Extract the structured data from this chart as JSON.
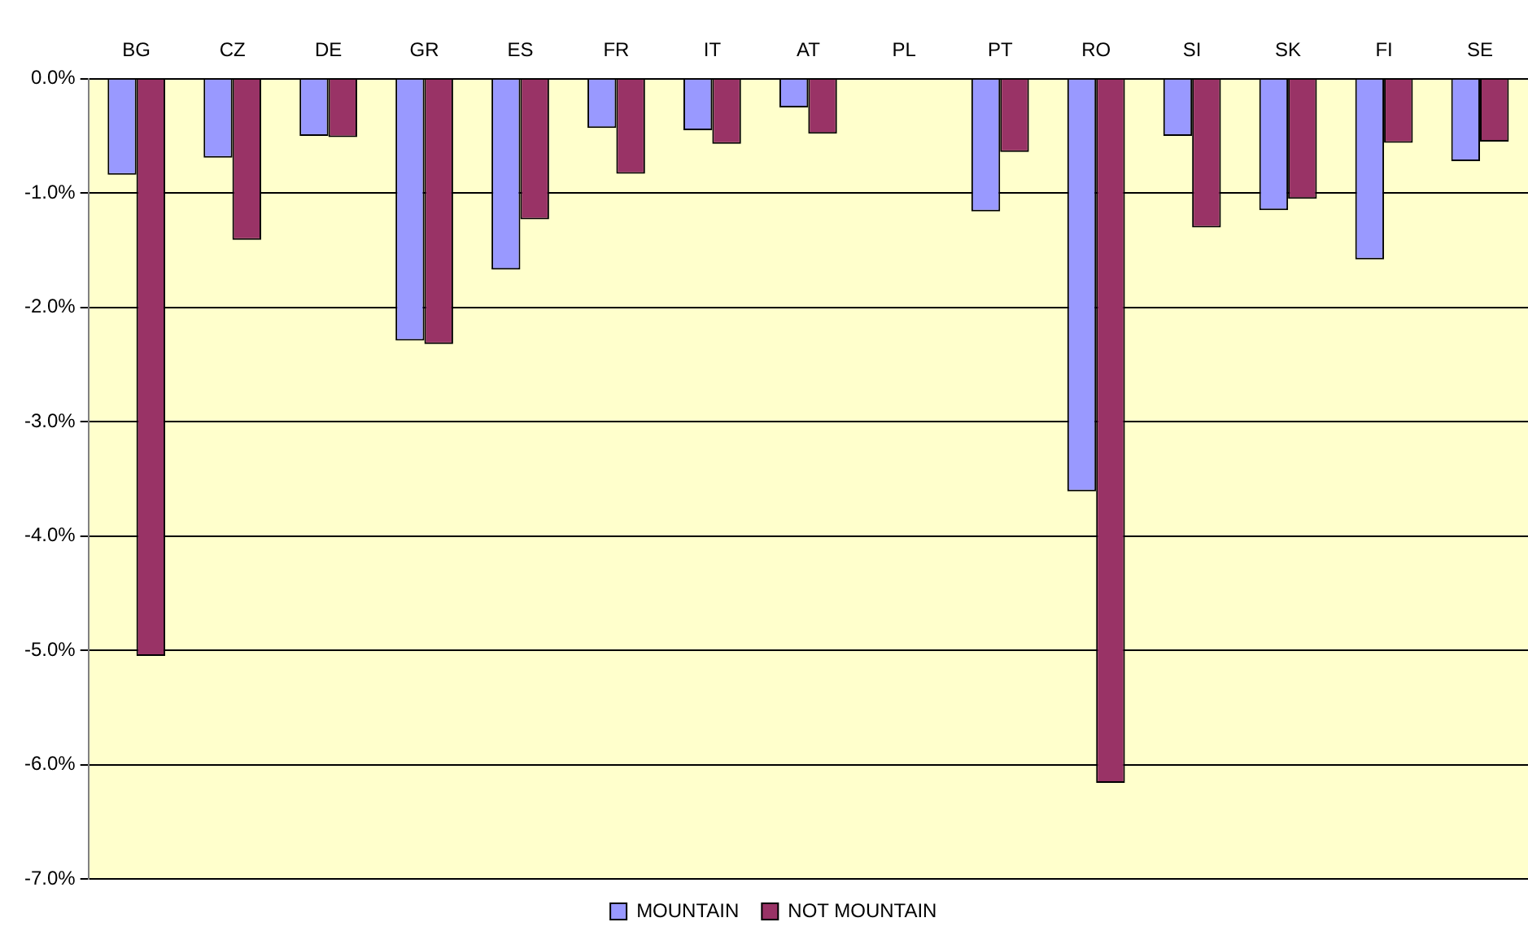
{
  "chart_data": {
    "type": "bar",
    "categories": [
      "BG",
      "CZ",
      "DE",
      "GR",
      "ES",
      "FR",
      "IT",
      "AT",
      "PL",
      "PT",
      "RO",
      "SI",
      "SK",
      "FI",
      "SE"
    ],
    "series": [
      {
        "name": "MOUNTAIN",
        "color": "#9999ff",
        "values": [
          -0.84,
          -0.69,
          -0.5,
          -2.29,
          -1.67,
          -0.43,
          -0.45,
          -0.25,
          null,
          -1.16,
          -3.61,
          -0.5,
          -1.15,
          -1.58,
          -0.72
        ]
      },
      {
        "name": "NOT MOUNTAIN",
        "color": "#993366",
        "values": [
          -5.05,
          -1.41,
          -0.51,
          -2.32,
          -1.23,
          -0.83,
          -0.57,
          -0.48,
          null,
          -0.64,
          -6.16,
          -1.3,
          -1.05,
          -0.56,
          -0.55
        ]
      }
    ],
    "ylim": [
      -7,
      0
    ],
    "yticks": [
      {
        "value": 0,
        "label": "0.0%"
      },
      {
        "value": -1,
        "label": "-1.0%"
      },
      {
        "value": -2,
        "label": "-2.0%"
      },
      {
        "value": -3,
        "label": "-3.0%"
      },
      {
        "value": -4,
        "label": "-4.0%"
      },
      {
        "value": -5,
        "label": "-5.0%"
      },
      {
        "value": -6,
        "label": "-6.0%"
      },
      {
        "value": -7,
        "label": "-7.0%"
      }
    ],
    "grid": "y",
    "legend": "bottom"
  }
}
